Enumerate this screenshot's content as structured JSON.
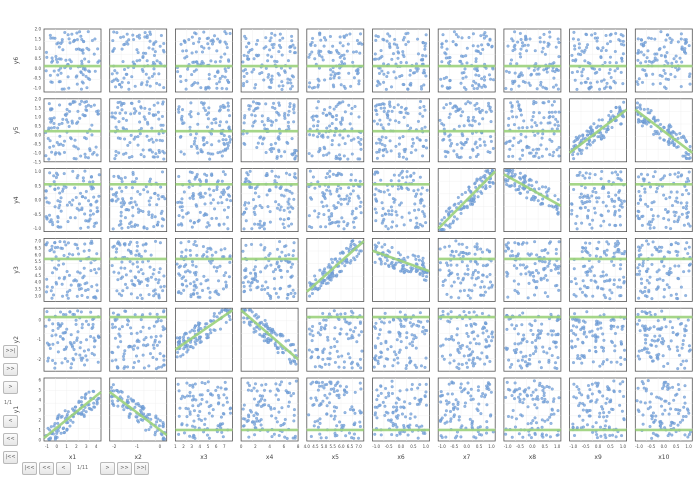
{
  "chart_data": {
    "type": "scatter",
    "title": "",
    "columns": [
      "x1",
      "x2",
      "x3",
      "x4",
      "x5",
      "x6",
      "x7",
      "x8",
      "x9",
      "x10"
    ],
    "rows": [
      "y6",
      "y5",
      "y4",
      "y3",
      "y2",
      "y1"
    ],
    "xlim": {
      "x1": [
        -1.3,
        4.5
      ],
      "x2": [
        -2.2,
        0.3
      ],
      "x3": [
        1,
        8
      ],
      "x4": [
        0,
        8
      ],
      "x5": [
        4.0,
        7.3
      ],
      "x6": [
        -1.15,
        1.15
      ],
      "x7": [
        -1.15,
        1.15
      ],
      "x8": [
        -1.15,
        1.15
      ],
      "x9": [
        -1.15,
        1.15
      ],
      "x10": [
        -1.15,
        1.15
      ]
    },
    "xticks": {
      "x1": [
        "-1",
        "0",
        "1",
        "2",
        "3",
        "4"
      ],
      "x2": [
        "-2",
        "-1",
        "0"
      ],
      "x3": [
        "1",
        "2",
        "3",
        "4",
        "5",
        "6",
        "7"
      ],
      "x4": [
        "0",
        "2",
        "4",
        "6",
        "8"
      ],
      "x5": [
        "4.0",
        "4.5",
        "5.0",
        "5.5",
        "6.0",
        "6.5",
        "7.0"
      ],
      "x6": [
        "-1.0",
        "-0.5",
        "0.0",
        "0.5",
        "1.0"
      ],
      "x7": [
        "-1.0",
        "-0.5",
        "0.0",
        "0.5",
        "1.0"
      ],
      "x8": [
        "-1.0",
        "-0.5",
        "0.0",
        "0.5",
        "1.0"
      ],
      "x9": [
        "-1.0",
        "-0.5",
        "0.0",
        "0.5",
        "1.0"
      ],
      "x10": [
        "-1.0",
        "-0.5",
        "0.0",
        "0.5",
        "1.0"
      ]
    },
    "ylim": {
      "y6": [
        -1.2,
        2.0
      ],
      "y5": [
        -1.5,
        2.0
      ],
      "y4": [
        -1.1,
        1.1
      ],
      "y3": [
        2.6,
        7.2
      ],
      "y2": [
        -2.6,
        0.6
      ],
      "y1": [
        -0.1,
        6.2
      ]
    },
    "yticks": {
      "y6": [
        "-1.0",
        "-0.5",
        "0.0",
        "0.5",
        "1.0",
        "1.5",
        "2.0"
      ],
      "y5": [
        "-1.5",
        "-1.0",
        "-0.5",
        "0.0",
        "0.5",
        "1.0",
        "1.5",
        "2.0"
      ],
      "y4": [
        "-1.0",
        "-0.5",
        "0.0",
        "0.5",
        "1.0"
      ],
      "y3": [
        "3.0",
        "3.5",
        "4.0",
        "4.5",
        "5.0",
        "5.5",
        "6.0",
        "6.5",
        "7.0"
      ],
      "y2": [
        "-2",
        "-1",
        "0"
      ],
      "y1": [
        "0",
        "1",
        "2",
        "3",
        "4",
        "5",
        "6"
      ]
    },
    "regression_lines": {
      "y6": {
        "x1": [
          0.12,
          0.12
        ],
        "x2": [
          0.12,
          0.12
        ],
        "x3": [
          0.12,
          0.12
        ],
        "x4": [
          0.12,
          0.12
        ],
        "x5": [
          0.12,
          0.12
        ],
        "x6": [
          0.12,
          0.12
        ],
        "x7": [
          0.12,
          0.12
        ],
        "x8": [
          0.12,
          0.12
        ],
        "x9": [
          0.12,
          0.12
        ],
        "x10": [
          0.12,
          0.12
        ]
      },
      "y5": {
        "x1": [
          0.2,
          0.2
        ],
        "x2": [
          0.2,
          0.2
        ],
        "x3": [
          0.2,
          0.2
        ],
        "x4": [
          0.2,
          0.2
        ],
        "x5": [
          0.2,
          0.2
        ],
        "x6": [
          0.2,
          0.2
        ],
        "x7": [
          0.2,
          0.2
        ],
        "x8": [
          0.2,
          0.2
        ],
        "x9": [
          -1.0,
          1.4
        ],
        "x10": [
          1.4,
          -1.0
        ]
      },
      "y4": {
        "x1": [
          0.55,
          0.55
        ],
        "x2": [
          0.55,
          0.55
        ],
        "x3": [
          0.55,
          0.55
        ],
        "x4": [
          0.55,
          0.55
        ],
        "x5": [
          0.55,
          0.55
        ],
        "x6": [
          0.55,
          0.55
        ],
        "x7": [
          -1.0,
          1.0
        ],
        "x8": [
          0.9,
          -0.2
        ],
        "x9": [
          0.55,
          0.55
        ],
        "x10": [
          0.55,
          0.55
        ]
      },
      "y3": {
        "x1": [
          5.7,
          5.7
        ],
        "x2": [
          5.7,
          5.7
        ],
        "x3": [
          5.7,
          5.7
        ],
        "x4": [
          5.7,
          5.7
        ],
        "x5": [
          3.3,
          7.0
        ],
        "x6": [
          6.3,
          4.8
        ],
        "x7": [
          5.7,
          5.7
        ],
        "x8": [
          5.7,
          5.7
        ],
        "x9": [
          5.7,
          5.7
        ],
        "x10": [
          5.7,
          5.7
        ]
      },
      "y2": {
        "x1": [
          0.15,
          0.15
        ],
        "x2": [
          0.15,
          0.15
        ],
        "x3": [
          -1.5,
          0.5
        ],
        "x4": [
          0.5,
          -2.0
        ],
        "x5": [
          0.15,
          0.15
        ],
        "x6": [
          0.15,
          0.15
        ],
        "x7": [
          0.15,
          0.15
        ],
        "x8": [
          0.15,
          0.15
        ],
        "x9": [
          0.15,
          0.15
        ],
        "x10": [
          0.15,
          0.15
        ]
      },
      "y1": {
        "x1": [
          0.2,
          4.8
        ],
        "x2": [
          4.8,
          0.5
        ],
        "x3": [
          1.0,
          1.0
        ],
        "x4": [
          1.0,
          1.0
        ],
        "x5": [
          1.0,
          1.0
        ],
        "x6": [
          1.0,
          1.0
        ],
        "x7": [
          1.0,
          1.0
        ],
        "x8": [
          1.0,
          1.0
        ],
        "x9": [
          1.0,
          1.0
        ],
        "x10": [
          1.0,
          1.0
        ]
      }
    },
    "points_per_panel": 100,
    "grid": true,
    "legend": "none",
    "colors": {
      "point": "#7aa6dc",
      "point_stroke": "#5a88c4",
      "line": "#9bd17b",
      "frame": "#555555",
      "grid": "#eeeeee",
      "tick": "#444444"
    }
  },
  "navigation": {
    "vertical": {
      "buttons": [
        ">>|",
        ">>",
        ">",
        "<",
        "<<",
        "|<<"
      ],
      "page": "1/1"
    },
    "horizontal": {
      "buttons": [
        "|<<",
        "<<",
        "<"
      ],
      "page": "1/11",
      "buttons_after": [
        ">",
        ">>",
        ">>|"
      ]
    }
  }
}
